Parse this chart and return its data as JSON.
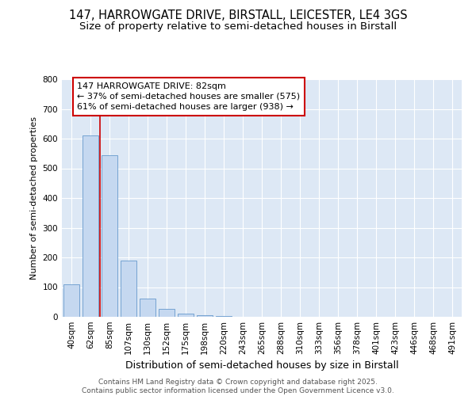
{
  "title": "147, HARROWGATE DRIVE, BIRSTALL, LEICESTER, LE4 3GS",
  "subtitle": "Size of property relative to semi-detached houses in Birstall",
  "xlabel": "Distribution of semi-detached houses by size in Birstall",
  "ylabel": "Number of semi-detached properties",
  "bin_labels": [
    "40sqm",
    "62sqm",
    "85sqm",
    "107sqm",
    "130sqm",
    "152sqm",
    "175sqm",
    "198sqm",
    "220sqm",
    "243sqm",
    "265sqm",
    "288sqm",
    "310sqm",
    "333sqm",
    "356sqm",
    "378sqm",
    "401sqm",
    "423sqm",
    "446sqm",
    "468sqm",
    "491sqm"
  ],
  "bar_values": [
    110,
    610,
    545,
    190,
    62,
    28,
    10,
    5,
    2,
    0,
    0,
    0,
    0,
    0,
    0,
    0,
    0,
    0,
    0,
    0,
    0
  ],
  "bar_color": "#c5d8f0",
  "bar_edge_color": "#6699cc",
  "property_line_color": "#cc0000",
  "annotation_title": "147 HARROWGATE DRIVE: 82sqm",
  "annotation_line2": "← 37% of semi-detached houses are smaller (575)",
  "annotation_line3": "61% of semi-detached houses are larger (938) →",
  "annotation_box_color": "#cc0000",
  "ylim": [
    0,
    800
  ],
  "yticks": [
    0,
    100,
    200,
    300,
    400,
    500,
    600,
    700,
    800
  ],
  "background_color": "#dde8f5",
  "footer_line1": "Contains HM Land Registry data © Crown copyright and database right 2025.",
  "footer_line2": "Contains public sector information licensed under the Open Government Licence v3.0.",
  "title_fontsize": 10.5,
  "subtitle_fontsize": 9.5,
  "ann_fontsize": 8.0,
  "axis_fontsize": 7.5,
  "ylabel_fontsize": 8.0,
  "xlabel_fontsize": 9.0,
  "footer_fontsize": 6.5
}
